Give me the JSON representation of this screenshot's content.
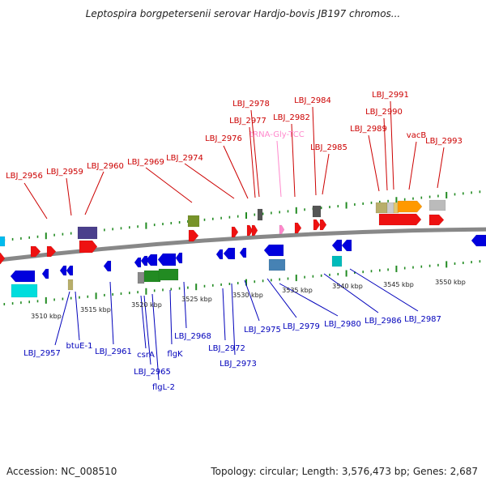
{
  "title": "Leptospira borgpetersenii serovar Hardjo-bovis JB197 chromos...",
  "footer": {
    "accession": "Accession: NC_008510",
    "summary": "Topology: circular; Length: 3,576,473 bp; Genes: 2,687"
  },
  "colors": {
    "forward_label": "#cc0000",
    "reverse_label": "#0000bb",
    "trna_label": "#ff88cc",
    "backbone": "#888888",
    "tick": "#228b22",
    "scale_text": "#222222"
  },
  "scale_labels": [
    "3510 kbp",
    "3515 kbp",
    "3520 kbp",
    "3525 kbp",
    "3530 kbp",
    "3535 kbp",
    "3540 kbp",
    "3545 kbp",
    "3550 kbp"
  ],
  "forward_labels": [
    {
      "text": "LBJ_2956",
      "gene": "LBJ_2956"
    },
    {
      "text": "LBJ_2959",
      "gene": "LBJ_2959"
    },
    {
      "text": "LBJ_2960",
      "gene": "LBJ_2960"
    },
    {
      "text": "LBJ_2969",
      "gene": "LBJ_2969"
    },
    {
      "text": "LBJ_2974",
      "gene": "LBJ_2974"
    },
    {
      "text": "LBJ_2976",
      "gene": "LBJ_2976"
    },
    {
      "text": "LBJ_2977",
      "gene": "LBJ_2977"
    },
    {
      "text": "LBJ_2978",
      "gene": "LBJ_2978"
    },
    {
      "text": "tRNA-Gly-TCC",
      "gene": "tRNA-Gly-TCC",
      "trna": true
    },
    {
      "text": "LBJ_2982",
      "gene": "LBJ_2982"
    },
    {
      "text": "LBJ_2984",
      "gene": "LBJ_2984"
    },
    {
      "text": "LBJ_2985",
      "gene": "LBJ_2985"
    },
    {
      "text": "LBJ_2989",
      "gene": "LBJ_2989"
    },
    {
      "text": "LBJ_2990",
      "gene": "LBJ_2990"
    },
    {
      "text": "LBJ_2991",
      "gene": "LBJ_2991"
    },
    {
      "text": "vacB",
      "gene": "vacB"
    },
    {
      "text": "LBJ_2993",
      "gene": "LBJ_2993"
    }
  ],
  "reverse_labels": [
    {
      "text": "LBJ_2957",
      "gene": "LBJ_2957"
    },
    {
      "text": "btuE-1",
      "gene": "btuE-1"
    },
    {
      "text": "LBJ_2961",
      "gene": "LBJ_2961"
    },
    {
      "text": "csrA",
      "gene": "csrA"
    },
    {
      "text": "LBJ_2965",
      "gene": "LBJ_2965"
    },
    {
      "text": "flgL-2",
      "gene": "flgL-2"
    },
    {
      "text": "flgK",
      "gene": "flgK"
    },
    {
      "text": "LBJ_2968",
      "gene": "LBJ_2968"
    },
    {
      "text": "LBJ_2972",
      "gene": "LBJ_2972"
    },
    {
      "text": "LBJ_2973",
      "gene": "LBJ_2973"
    },
    {
      "text": "LBJ_2975",
      "gene": "LBJ_2975"
    },
    {
      "text": "LBJ_2979",
      "gene": "LBJ_2979"
    },
    {
      "text": "LBJ_2980",
      "gene": "LBJ_2980"
    },
    {
      "text": "LBJ_2986",
      "gene": "LBJ_2986"
    },
    {
      "text": "LBJ_2987",
      "gene": "LBJ_2987"
    }
  ]
}
